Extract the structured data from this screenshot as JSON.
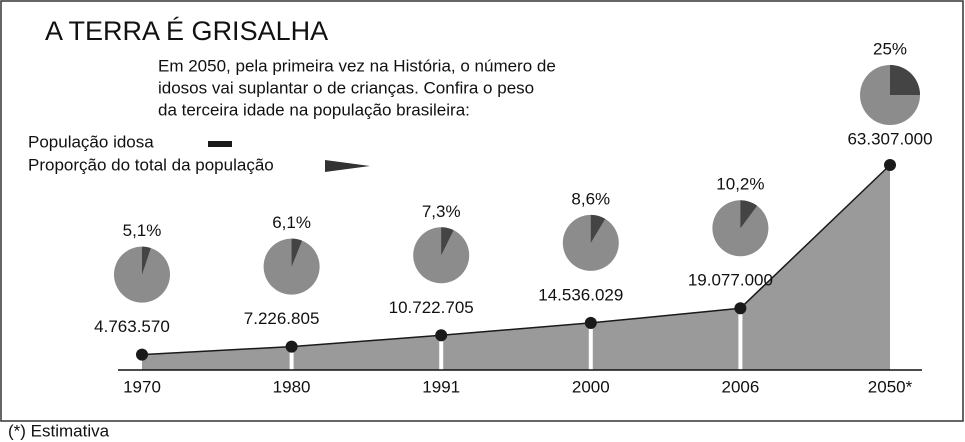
{
  "chart_data": {
    "type": "area",
    "title": "A TERRA É GRISALHA",
    "subtitle_lines": [
      "Em 2050, pela primeira vez na História, o número de",
      "idosos vai suplantar o de crianças. Confira o peso",
      "da terceira idade na população brasileira:"
    ],
    "categories": [
      "1970",
      "1980",
      "1991",
      "2000",
      "2006",
      "2050*"
    ],
    "series": [
      {
        "name": "População idosa",
        "color": "#1a1a1a",
        "values": [
          4763570,
          7226805,
          10722705,
          14536029,
          19077000,
          63307000
        ],
        "value_labels": [
          "4.763.570",
          "7.226.805",
          "10.722.705",
          "14.536.029",
          "19.077.000",
          "63.307.000"
        ]
      },
      {
        "name": "Proporção do total da população",
        "color": "#444444",
        "values": [
          5.1,
          6.1,
          7.3,
          8.6,
          10.2,
          25
        ],
        "value_labels": [
          "5,1%",
          "6,1%",
          "7,3%",
          "8,6%",
          "10,2%",
          "25%"
        ]
      }
    ],
    "area_color": "#9a9a9a",
    "note": "(*) Estimativa"
  }
}
